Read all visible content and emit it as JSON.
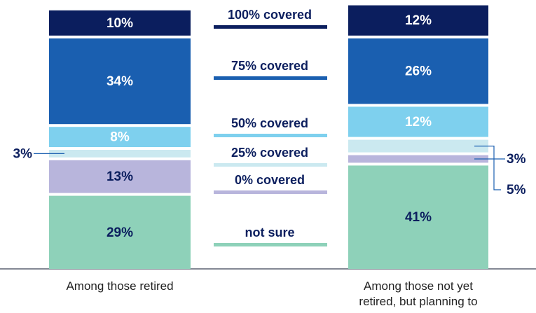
{
  "chart_data": {
    "type": "stacked_bar",
    "categories": [
      "Among those retired",
      "Among those not yet retired, but planning to"
    ],
    "series": [
      {
        "name": "not sure",
        "color": "#8ed1b9",
        "values": [
          29,
          41
        ],
        "value_labels": [
          "29%",
          "41%"
        ]
      },
      {
        "name": "0% covered",
        "color": "#b8b5dc",
        "values": [
          13,
          3
        ],
        "value_labels": [
          "13%",
          "3%"
        ]
      },
      {
        "name": "25% covered",
        "color": "#cbe9f0",
        "values": [
          3,
          5
        ],
        "value_labels": [
          "3%",
          "5%"
        ]
      },
      {
        "name": "50% covered",
        "color": "#7ed0ee",
        "values": [
          8,
          12
        ],
        "value_labels": [
          "8%",
          "12%"
        ]
      },
      {
        "name": "75% covered",
        "color": "#1a5fb0",
        "values": [
          34,
          26
        ],
        "value_labels": [
          "34%",
          "26%"
        ]
      },
      {
        "name": "100% covered",
        "color": "#0b1e5e",
        "values": [
          10,
          12
        ],
        "value_labels": [
          "10%",
          "12%"
        ]
      }
    ]
  }
}
